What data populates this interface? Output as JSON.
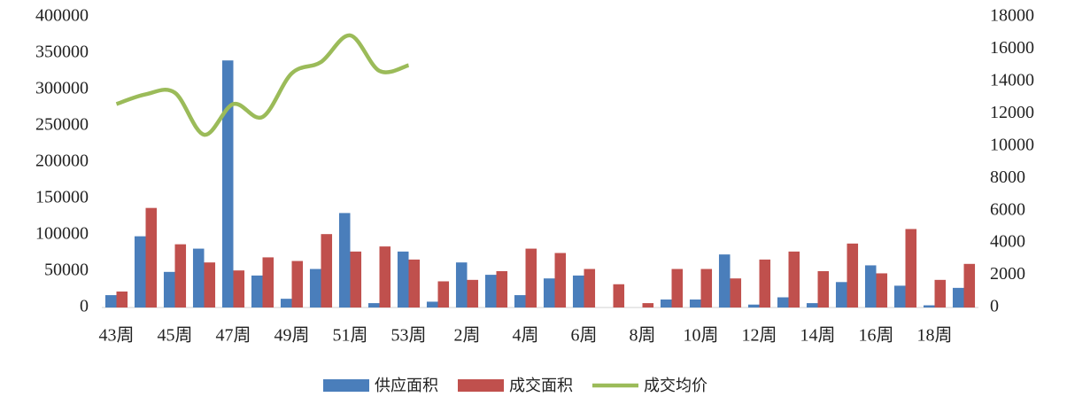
{
  "chart_data": {
    "type": "bar_line",
    "categories": [
      "43周",
      null,
      "45周",
      null,
      "47周",
      null,
      "49周",
      null,
      "51周",
      null,
      "53周",
      null,
      "2周",
      null,
      "4周",
      null,
      "6周",
      null,
      "8周",
      null,
      "10周",
      null,
      "12周",
      null,
      "14周",
      null,
      "16周",
      null,
      "18周",
      null
    ],
    "series": [
      {
        "name": "供应面积",
        "type": "bar",
        "color": "#4a7ebb",
        "values": [
          17000,
          98000,
          49000,
          81000,
          340000,
          44000,
          12000,
          53000,
          130000,
          6000,
          77000,
          8000,
          62000,
          45000,
          17000,
          40000,
          44000,
          0,
          0,
          11000,
          11000,
          73000,
          4000,
          14000,
          6000,
          35000,
          58000,
          30000,
          3000,
          27000
        ]
      },
      {
        "name": "成交面积",
        "type": "bar",
        "color": "#c0504d",
        "values": [
          22000,
          137000,
          87000,
          62000,
          51000,
          69000,
          64000,
          101000,
          77000,
          84000,
          66000,
          36000,
          38000,
          50000,
          81000,
          75000,
          53000,
          32000,
          6000,
          53000,
          53000,
          40000,
          66000,
          77000,
          50000,
          88000,
          47000,
          108000,
          38000,
          60000
        ]
      },
      {
        "name": "成交均价",
        "type": "line",
        "axis": "y2",
        "color": "#9bbb59",
        "values": [
          12600,
          13200,
          13300,
          10700,
          12600,
          11800,
          14500,
          15200,
          16850,
          14650,
          15000,
          null,
          null,
          null,
          null,
          null,
          null,
          null,
          null,
          null,
          null,
          null,
          null,
          null,
          null,
          null,
          null,
          null,
          null,
          null
        ]
      }
    ],
    "ylim": [
      0,
      400000
    ],
    "yticks": [
      0,
      50000,
      100000,
      150000,
      200000,
      250000,
      300000,
      350000,
      400000
    ],
    "y2lim": [
      0,
      18000
    ],
    "y2ticks": [
      0,
      2000,
      4000,
      6000,
      8000,
      10000,
      12000,
      14000,
      16000,
      18000
    ],
    "legend": "bottom"
  }
}
